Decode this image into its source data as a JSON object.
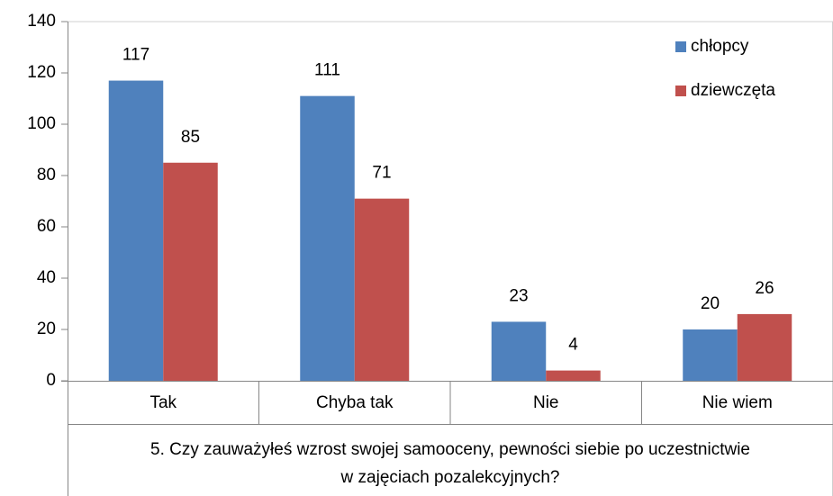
{
  "chart_data": {
    "type": "bar",
    "categories": [
      "Tak",
      "Chyba tak",
      "Nie",
      "Nie wiem"
    ],
    "series": [
      {
        "name": "chłopcy",
        "color": "#4f81bd",
        "values": [
          117,
          111,
          23,
          20
        ]
      },
      {
        "name": "dziewczęta",
        "color": "#c0504d",
        "values": [
          85,
          71,
          4,
          26
        ]
      }
    ],
    "x_label": [
      "5. Czy zauważyłeś wzrost swojej samooceny, pewności siebie po uczestnictwie",
      "w zajęciach pozalekcyjnych?"
    ],
    "ylim": [
      0,
      140
    ],
    "yticks": [
      0,
      20,
      40,
      60,
      80,
      100,
      120,
      140
    ],
    "legend": "top-right",
    "grid": false
  }
}
